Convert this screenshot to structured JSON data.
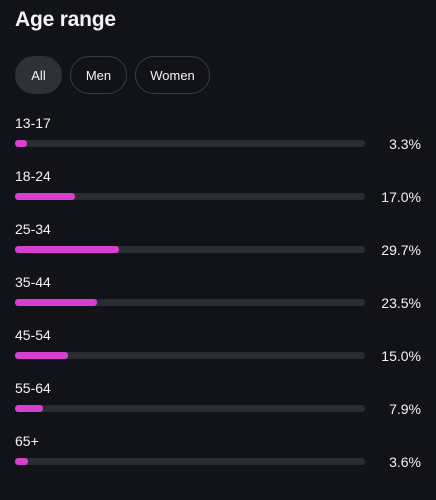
{
  "header": {
    "title": "Age range"
  },
  "tabs": [
    {
      "label": "All",
      "active": true
    },
    {
      "label": "Men",
      "active": false
    },
    {
      "label": "Women",
      "active": false
    }
  ],
  "colors": {
    "accent": "#d63fcf",
    "track": "#2a2c33",
    "background": "#121319"
  },
  "age_ranges": [
    {
      "label": "13-17",
      "value": "3.3%",
      "pct": 3.3
    },
    {
      "label": "18-24",
      "value": "17.0%",
      "pct": 17.0
    },
    {
      "label": "25-34",
      "value": "29.7%",
      "pct": 29.7
    },
    {
      "label": "35-44",
      "value": "23.5%",
      "pct": 23.5
    },
    {
      "label": "45-54",
      "value": "15.0%",
      "pct": 15.0
    },
    {
      "label": "55-64",
      "value": "7.9%",
      "pct": 7.9
    },
    {
      "label": "65+",
      "value": "3.6%",
      "pct": 3.6
    }
  ]
}
